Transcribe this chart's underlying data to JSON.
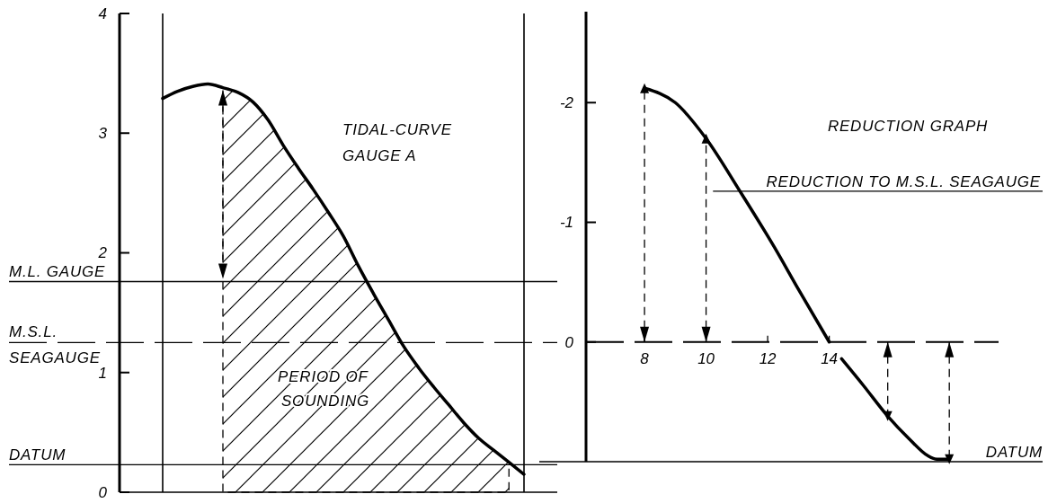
{
  "chart_data": [
    {
      "type": "line",
      "title": "TIDAL-CURVE GAUGE A",
      "categories": [
        null,
        null,
        null,
        null,
        null,
        null,
        null,
        null,
        null,
        null,
        null,
        null,
        null,
        null,
        null,
        null,
        null,
        null,
        null,
        null,
        null,
        null,
        null,
        null,
        null
      ],
      "series": [
        {
          "color": "#000000",
          "values": [
            3.29,
            3.35,
            3.39,
            3.41,
            3.38,
            3.34,
            3.26,
            3.11,
            2.9,
            2.71,
            2.53,
            2.34,
            2.14,
            1.89,
            1.66,
            1.44,
            1.22,
            1.04,
            0.88,
            0.73,
            0.58,
            0.45,
            0.35,
            0.25,
            0.15
          ]
        },
        {
          "type": "area",
          "color": "#000000",
          "values": [
            null,
            null,
            null,
            null,
            3.38,
            3.34,
            3.26,
            3.11,
            2.9,
            2.71,
            2.53,
            2.34,
            2.14,
            1.89,
            1.66,
            1.44,
            1.22,
            1.04,
            0.88,
            0.73,
            0.58,
            0.45,
            0.35,
            0.25,
            null
          ]
        }
      ],
      "ylim": [
        0,
        4
      ],
      "yticks": [
        0,
        1,
        2,
        3,
        4
      ],
      "tick_labels": "y",
      "ref_lines": [
        {
          "axis": "y",
          "value": 1.76,
          "label": "M.L. GAUGE"
        },
        {
          "axis": "y",
          "value": 1.25,
          "label": "M.S.L. SEAGAUGE",
          "line_style": "dashed"
        },
        {
          "axis": "y",
          "value": 0.23,
          "label": "DATUM"
        }
      ],
      "annotations": [
        "PERIOD OF SOUNDING"
      ]
    },
    {
      "type": "line",
      "title": "REDUCTION GRAPH",
      "series": [
        {
          "color": "#000000",
          "x": [
            8,
            9,
            10,
            11.1,
            12.2,
            13,
            14
          ],
          "values": [
            -2.12,
            -2.0,
            -1.7,
            -1.26,
            -0.8,
            -0.44,
            0
          ]
        },
        {
          "color": "#000000",
          "x": [
            14.4,
            15.1,
            15.9,
            16.6,
            17.2,
            17.5,
            17.9
          ],
          "values": [
            0.14,
            0.36,
            0.62,
            0.81,
            0.95,
            0.98,
            0.98
          ]
        },
        {
          "type": "lollipop",
          "color": "#000000",
          "line_style": "dashed",
          "marker": "triangle",
          "x": [
            8,
            10,
            15.9,
            17.9
          ],
          "values": [
            -2.12,
            -1.7,
            0.62,
            0.98
          ]
        }
      ],
      "xlim": [
        6.1,
        19.5
      ],
      "xticks": [
        8,
        10,
        12,
        14
      ],
      "ylim": [
        1.0,
        -2.76
      ],
      "yticks": [
        -2,
        -1,
        0
      ],
      "ref_lines": [
        {
          "axis": "y",
          "value": 1.0,
          "label": "DATUM"
        }
      ],
      "annotations": [
        {
          "text": "REDUCTION TO M.S.L. SEAGAUGE",
          "x": 11.1,
          "y": -1.26
        }
      ]
    }
  ]
}
